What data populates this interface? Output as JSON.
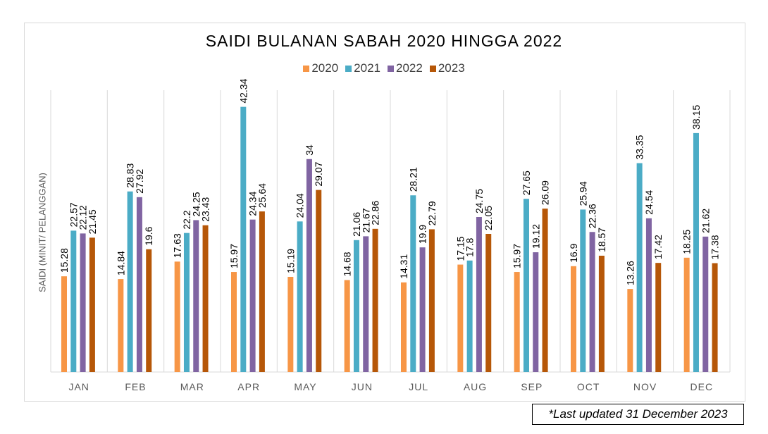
{
  "chart_data": {
    "type": "bar",
    "title": "SAIDI BULANAN SABAH 2020 HINGGA 2022",
    "ylabel": "SAIDI (MINIT/ PELANGGAN)",
    "xlabel": "",
    "ylim": [
      0,
      45
    ],
    "grid": "vertical category separators",
    "legend": "top",
    "categories": [
      "JAN",
      "FEB",
      "MAR",
      "APR",
      "MAY",
      "JUN",
      "JUL",
      "AUG",
      "SEP",
      "OCT",
      "NOV",
      "DEC"
    ],
    "series": [
      {
        "name": "2020",
        "color": "#f79646",
        "values": [
          15.28,
          14.84,
          17.63,
          15.97,
          15.19,
          14.68,
          14.31,
          17.15,
          15.97,
          16.9,
          13.26,
          18.25
        ]
      },
      {
        "name": "2021",
        "color": "#4bacc6",
        "values": [
          22.57,
          28.83,
          22.2,
          42.34,
          24.04,
          21.06,
          28.21,
          17.8,
          27.65,
          25.94,
          33.35,
          38.15
        ]
      },
      {
        "name": "2022",
        "color": "#8064a2",
        "values": [
          22.12,
          27.92,
          24.25,
          24.34,
          34,
          21.67,
          19.9,
          24.75,
          19.12,
          22.36,
          24.54,
          21.62
        ]
      },
      {
        "name": "2023",
        "color": "#b65708",
        "values": [
          21.45,
          19.6,
          23.43,
          25.64,
          29.07,
          22.86,
          22.79,
          22.05,
          26.09,
          18.57,
          17.42,
          17.38
        ]
      }
    ]
  },
  "footer": {
    "note": "*Last updated 31 December 2023"
  }
}
